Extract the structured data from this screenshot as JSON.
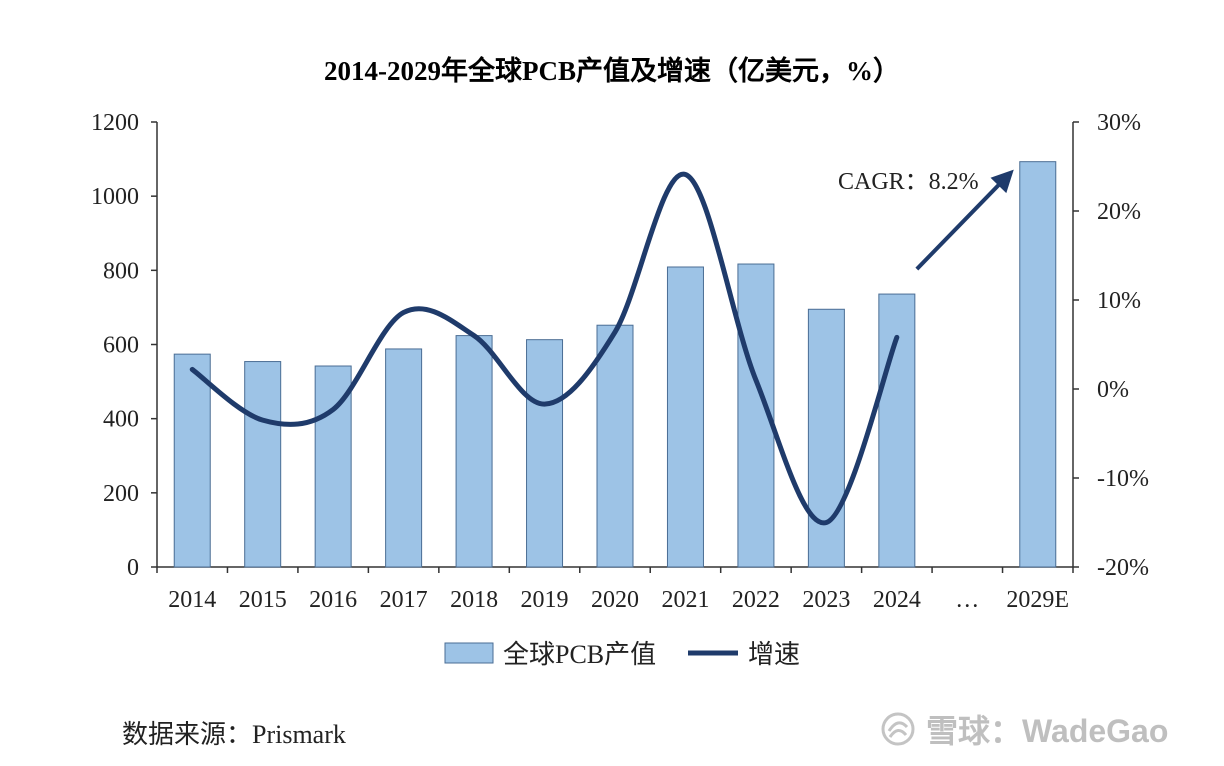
{
  "chart_data": {
    "type": "bar",
    "title": "2014-2029年全球PCB产值及增速（亿美元，%）",
    "categories": [
      "2014",
      "2015",
      "2016",
      "2017",
      "2018",
      "2019",
      "2020",
      "2021",
      "2022",
      "2023",
      "2024",
      "…",
      "2029E"
    ],
    "series": [
      {
        "name": "全球PCB产值",
        "type": "bar",
        "axis": "left",
        "color": "#9dc3e6",
        "values": [
          574,
          554,
          542,
          588,
          624,
          613,
          652,
          809,
          817,
          695,
          736,
          null,
          1093
        ]
      },
      {
        "name": "增速",
        "type": "line",
        "axis": "right",
        "color": "#1f3b6b",
        "values": [
          2.2,
          -3.5,
          -2.3,
          8.6,
          6.0,
          -1.7,
          6.4,
          24.1,
          1.0,
          -15.0,
          5.8,
          null,
          null
        ]
      }
    ],
    "y_left": {
      "min": 0,
      "max": 1200,
      "ticks": [
        "0",
        "200",
        "400",
        "600",
        "800",
        "1000",
        "1200"
      ]
    },
    "y_right": {
      "min": -20,
      "max": 30,
      "ticks": [
        "-20%",
        "-10%",
        "0%",
        "10%",
        "20%",
        "30%"
      ]
    },
    "annotation": "CAGR：8.2%",
    "legend": [
      "全球PCB产值",
      "增速"
    ],
    "legend_position": "bottom",
    "grid": false
  },
  "source": "数据来源：Prismark",
  "watermark": {
    "text": "雪球：WadeGao",
    "icon": "snowball-logo-icon"
  }
}
